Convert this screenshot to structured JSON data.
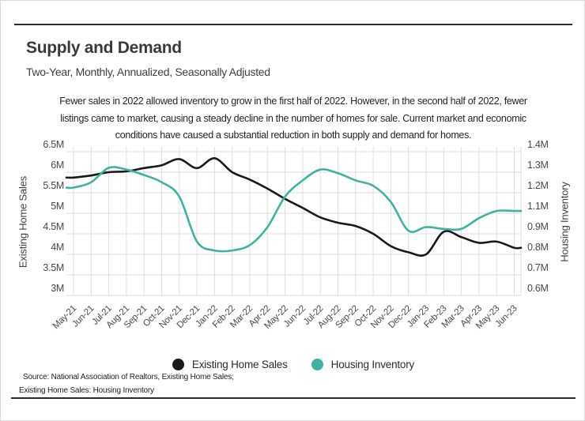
{
  "header": {
    "title": "Supply and Demand",
    "subtitle": "Two-Year, Monthly, Annualized, Seasonally Adjusted"
  },
  "description": {
    "lines": [
      "Fewer sales in 2022 allowed inventory to grow in the first half of 2022. However, in the second half of 2022, fewer",
      "listings came to market, causing a steady decline in the number of homes for sale. Current market and economic",
      "conditions have caused a substantial reduction in both supply and demand for homes."
    ]
  },
  "footer": {
    "source_line1": "Source:  National Association of Realtors, Existing Home Sales;",
    "source_line2": "Existing Home Sales: Housing Inventory"
  },
  "colors": {
    "sales_line": "#1a1a1a",
    "inventory_line": "#3eb3a2",
    "gridline": "#dedede",
    "tick_text": "#4a4a4a"
  },
  "chart_data": {
    "type": "line",
    "categories": [
      "May-21",
      "Jun-21",
      "Jul-21",
      "Aug-21",
      "Sep-21",
      "Oct-21",
      "Nov-21",
      "Dec-21",
      "Jan-22",
      "Feb-22",
      "Mar-22",
      "Apr-22",
      "May-22",
      "Jun-22",
      "Jul-22",
      "Aug-22",
      "Sep-22",
      "Oct-22",
      "Nov-22",
      "Dec-22",
      "Jan-23",
      "Feb-23",
      "Mar-23",
      "Apr-23",
      "May-23",
      "Jun-23"
    ],
    "series": [
      {
        "name": "Existing Home Sales",
        "axis": "left",
        "color": "#1a1a1a",
        "values": [
          5.87,
          5.92,
          6.0,
          6.02,
          6.1,
          6.17,
          6.32,
          6.1,
          6.34,
          6.0,
          5.82,
          5.6,
          5.35,
          5.13,
          4.9,
          4.77,
          4.69,
          4.5,
          4.2,
          4.05,
          4.0,
          4.55,
          4.42,
          4.28,
          4.31,
          4.16
        ]
      },
      {
        "name": "Housing Inventory",
        "axis": "right",
        "color": "#3eb3a2",
        "values": [
          1.2,
          1.23,
          1.31,
          1.3,
          1.27,
          1.23,
          1.15,
          0.9,
          0.85,
          0.85,
          0.88,
          0.98,
          1.15,
          1.24,
          1.3,
          1.28,
          1.24,
          1.21,
          1.12,
          0.96,
          0.98,
          0.97,
          0.97,
          1.03,
          1.07,
          1.07
        ]
      }
    ],
    "left_axis": {
      "label": "Existing Home Sales",
      "ticks": [
        "6.5M",
        "6M",
        "5.5M",
        "5M",
        "4.5M",
        "4M",
        "3.5M",
        "3M"
      ],
      "range": [
        3.0,
        6.5
      ]
    },
    "right_axis": {
      "label": "Housing Inventory",
      "ticks": [
        "1.4M",
        "1.3M",
        "1.2M",
        "1.1M",
        "0.9M",
        "0.8M",
        "0.7M",
        "0.6M"
      ],
      "range": [
        0.6,
        1.4
      ]
    },
    "grid": true,
    "legend_position": "bottom"
  }
}
